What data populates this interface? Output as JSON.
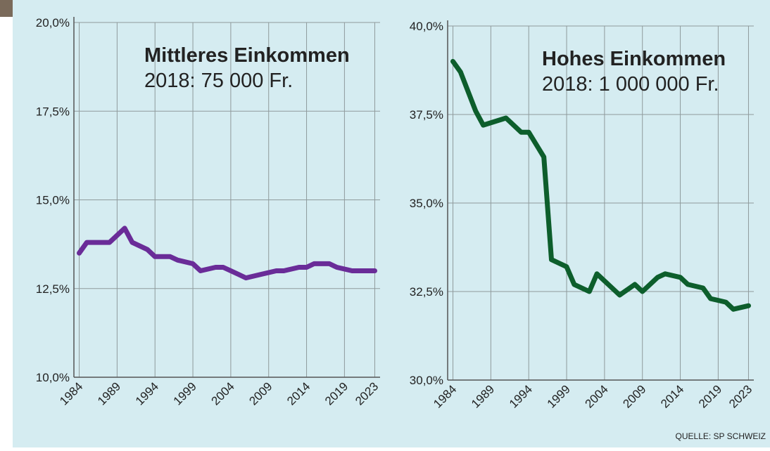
{
  "chart_data": [
    {
      "type": "line",
      "title": "Mittleres Einkommen",
      "subtitle": "2018: 75 000 Fr.",
      "color": "#6a2c98",
      "x": [
        1984,
        1985,
        1988,
        1990,
        1991,
        1993,
        1994,
        1996,
        1997,
        1999,
        2000,
        2002,
        2003,
        2005,
        2006,
        2008,
        2010,
        2011,
        2013,
        2014,
        2015,
        2017,
        2018,
        2020,
        2021,
        2023
      ],
      "values": [
        13.5,
        13.8,
        13.8,
        14.2,
        13.8,
        13.6,
        13.4,
        13.4,
        13.3,
        13.2,
        13.0,
        13.1,
        13.1,
        12.9,
        12.8,
        12.9,
        13.0,
        13.0,
        13.1,
        13.1,
        13.2,
        13.2,
        13.1,
        13.0,
        13.0,
        13.0
      ],
      "xlim": [
        1983.3,
        2023.7
      ],
      "xticks": [
        1984,
        1989,
        1994,
        1999,
        2004,
        2009,
        2014,
        2019,
        2023
      ],
      "ylim": [
        10,
        20
      ],
      "yticks": [
        {
          "value": 10,
          "label": "10,0%"
        },
        {
          "value": 12.5,
          "label": "12,5%"
        },
        {
          "value": 15,
          "label": "15,0%"
        },
        {
          "value": 17.5,
          "label": "17,5%"
        },
        {
          "value": 20,
          "label": "20,0%"
        }
      ],
      "grid": true
    },
    {
      "type": "line",
      "title": "Hohes Einkommen",
      "subtitle": "2018: 1 000 000 Fr.",
      "color": "#0d5e2c",
      "x": [
        1984,
        1985,
        1987,
        1988,
        1991,
        1993,
        1994,
        1996,
        1997,
        1999,
        2000,
        2002,
        2003,
        2005,
        2006,
        2008,
        2009,
        2011,
        2012,
        2014,
        2015,
        2017,
        2018,
        2020,
        2021,
        2023
      ],
      "values": [
        39.0,
        38.7,
        37.6,
        37.2,
        37.4,
        37.0,
        37.0,
        36.3,
        33.4,
        33.2,
        32.7,
        32.5,
        33.0,
        32.6,
        32.4,
        32.7,
        32.5,
        32.9,
        33.0,
        32.9,
        32.7,
        32.6,
        32.3,
        32.2,
        32.0,
        32.1
      ],
      "xlim": [
        1983.3,
        2023.7
      ],
      "xticks": [
        1984,
        1989,
        1994,
        1999,
        2004,
        2009,
        2014,
        2019,
        2023
      ],
      "ylim": [
        30,
        40
      ],
      "yticks": [
        {
          "value": 30,
          "label": "30,0%"
        },
        {
          "value": 32.5,
          "label": "32,5%"
        },
        {
          "value": 35,
          "label": "35,0%"
        },
        {
          "value": 37.5,
          "label": "37,5%"
        },
        {
          "value": 40,
          "label": "40,0%"
        }
      ],
      "grid": true
    }
  ],
  "source": "QUELLE: SP SCHWEIZ"
}
